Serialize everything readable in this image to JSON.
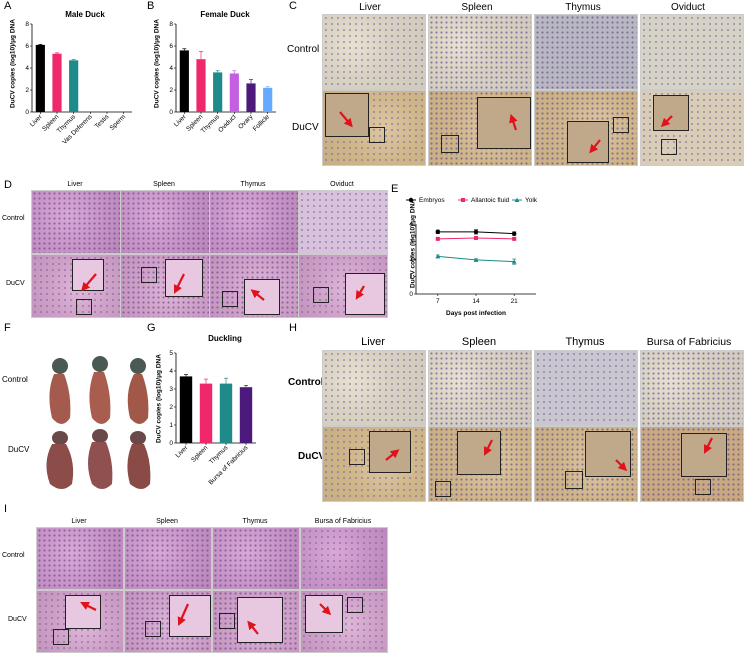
{
  "panels": {
    "A": {
      "label": "A"
    },
    "B": {
      "label": "B"
    },
    "C": {
      "label": "C",
      "columns": [
        "Liver",
        "Spleen",
        "Thymus",
        "Oviduct"
      ],
      "rows": [
        "Control",
        "DuCV"
      ]
    },
    "D": {
      "label": "D",
      "columns": [
        "Liver",
        "Spleen",
        "Thymus",
        "Oviduct"
      ],
      "rows": [
        "Control",
        "DuCV"
      ]
    },
    "E": {
      "label": "E"
    },
    "F": {
      "label": "F",
      "rows": [
        "Control",
        "DuCV"
      ]
    },
    "G": {
      "label": "G"
    },
    "H": {
      "label": "H",
      "columns": [
        "Liver",
        "Spleen",
        "Thymus",
        "Bursa of Fabricius"
      ],
      "rows": [
        "Control",
        "DuCV"
      ]
    },
    "I": {
      "label": "I",
      "columns": [
        "Liver",
        "Spleen",
        "Thymus",
        "Bursa of Fabricius"
      ],
      "rows": [
        "Control",
        "DuCV"
      ]
    }
  },
  "colors": {
    "black": "#000000",
    "pink": "#f0286a",
    "teal": "#1e8a8a",
    "purple": "#c45fe0",
    "darkpurple": "#4b1a7a",
    "blue": "#66aaff",
    "red": "#e0121b"
  },
  "chart_data": [
    {
      "id": "A",
      "type": "bar",
      "title": "Male Duck",
      "ylabel": "DuCV copies (log10)/μg DNA",
      "ylim": [
        0,
        8
      ],
      "yticks": [
        0,
        2,
        4,
        6,
        8
      ],
      "categories": [
        "Liver",
        "Spleen",
        "Thymus",
        "Vas Deferens",
        "Testis",
        "Sperm"
      ],
      "values": [
        6.1,
        5.3,
        4.7,
        0,
        0,
        0
      ],
      "errors": [
        0.05,
        0.08,
        0.07,
        0,
        0,
        0
      ],
      "colors": [
        "#000000",
        "#f0286a",
        "#1e8a8a",
        "#000000",
        "#000000",
        "#000000"
      ]
    },
    {
      "id": "B",
      "type": "bar",
      "title": "Female Duck",
      "ylabel": "DuCV copies (log10)/μg DNA",
      "ylim": [
        0,
        8
      ],
      "yticks": [
        0,
        2,
        4,
        6,
        8
      ],
      "categories": [
        "Liver",
        "Spleen",
        "Thymus",
        "Oviduct",
        "Ovary",
        "Follicle"
      ],
      "values": [
        5.6,
        4.8,
        3.6,
        3.5,
        2.6,
        2.2
      ],
      "errors": [
        0.15,
        0.7,
        0.15,
        0.25,
        0.35,
        0.1
      ],
      "colors": [
        "#000000",
        "#f0286a",
        "#1e8a8a",
        "#c45fe0",
        "#4b1a7a",
        "#66aaff"
      ]
    },
    {
      "id": "E",
      "type": "line",
      "title": "",
      "xlabel": "Days post infection",
      "ylabel": "DuCV copies (log10)/μg DNA",
      "ylim": [
        0,
        4
      ],
      "yticks": [
        0,
        1,
        2,
        3,
        4
      ],
      "x": [
        7,
        14,
        21
      ],
      "legend": "top",
      "series": [
        {
          "name": "Embryos",
          "values": [
            3.55,
            3.55,
            3.45
          ],
          "errors": [
            0.1,
            0.12,
            0.1
          ],
          "color": "#000000",
          "marker": "circle"
        },
        {
          "name": "Allantoic fluid",
          "values": [
            3.15,
            3.2,
            3.15
          ],
          "errors": [
            0.06,
            0.05,
            0.06
          ],
          "color": "#f0286a",
          "marker": "square"
        },
        {
          "name": "Yolk",
          "values": [
            2.15,
            1.95,
            1.85
          ],
          "errors": [
            0.08,
            0.06,
            0.15
          ],
          "color": "#1e8a8a",
          "marker": "triangle"
        }
      ]
    },
    {
      "id": "G",
      "type": "bar",
      "title": "Duckling",
      "ylabel": "DuCV copies (log10)/μg DNA",
      "ylim": [
        0,
        5
      ],
      "yticks": [
        0,
        1,
        2,
        3,
        4,
        5
      ],
      "categories": [
        "Liver",
        "Spleen",
        "Thymus",
        "Bursa of Fabricius"
      ],
      "values": [
        3.7,
        3.3,
        3.3,
        3.1
      ],
      "errors": [
        0.1,
        0.25,
        0.3,
        0.1
      ],
      "colors": [
        "#000000",
        "#f0286a",
        "#1e8a8a",
        "#4b1a7a"
      ]
    }
  ]
}
